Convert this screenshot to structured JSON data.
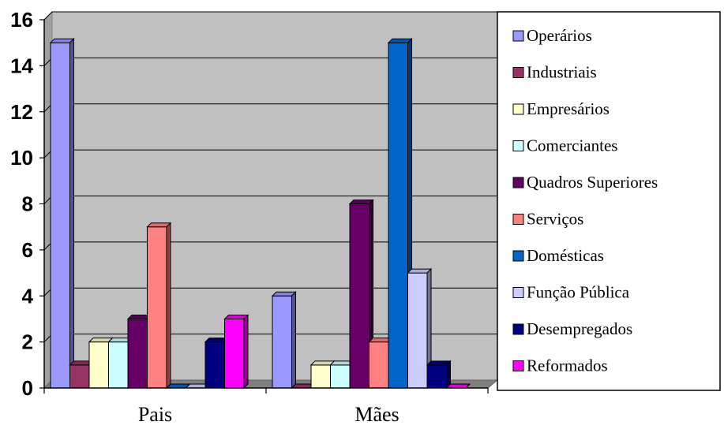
{
  "chart_data": {
    "type": "bar",
    "title": "",
    "xlabel": "",
    "ylabel": "",
    "ylim": [
      0,
      16
    ],
    "y_ticks": [
      "0",
      "2",
      "4",
      "6",
      "8",
      "10",
      "12",
      "14",
      "16"
    ],
    "grid": true,
    "legend_position": "right",
    "plot_background": "#c0c0c0",
    "categories": [
      "Pais",
      "Mães"
    ],
    "series": [
      {
        "name": "Operários",
        "color": "#9999ff",
        "values": [
          15,
          4
        ]
      },
      {
        "name": "Industriais",
        "color": "#993366",
        "values": [
          1,
          0
        ]
      },
      {
        "name": "Empresários",
        "color": "#ffffcc",
        "values": [
          2,
          1
        ]
      },
      {
        "name": "Comerciantes",
        "color": "#ccffff",
        "values": [
          2,
          1
        ]
      },
      {
        "name": "Quadros Superiores",
        "color": "#660066",
        "values": [
          3,
          8
        ]
      },
      {
        "name": "Serviços",
        "color": "#ff8080",
        "values": [
          7,
          2
        ]
      },
      {
        "name": "Domésticas",
        "color": "#0066cc",
        "values": [
          0,
          15
        ]
      },
      {
        "name": "Função Pública",
        "color": "#ccccff",
        "values": [
          0,
          5
        ]
      },
      {
        "name": "Desempregados",
        "color": "#000080",
        "values": [
          2,
          1
        ]
      },
      {
        "name": "Reformados",
        "color": "#ff00ff",
        "values": [
          3,
          0
        ]
      }
    ]
  }
}
